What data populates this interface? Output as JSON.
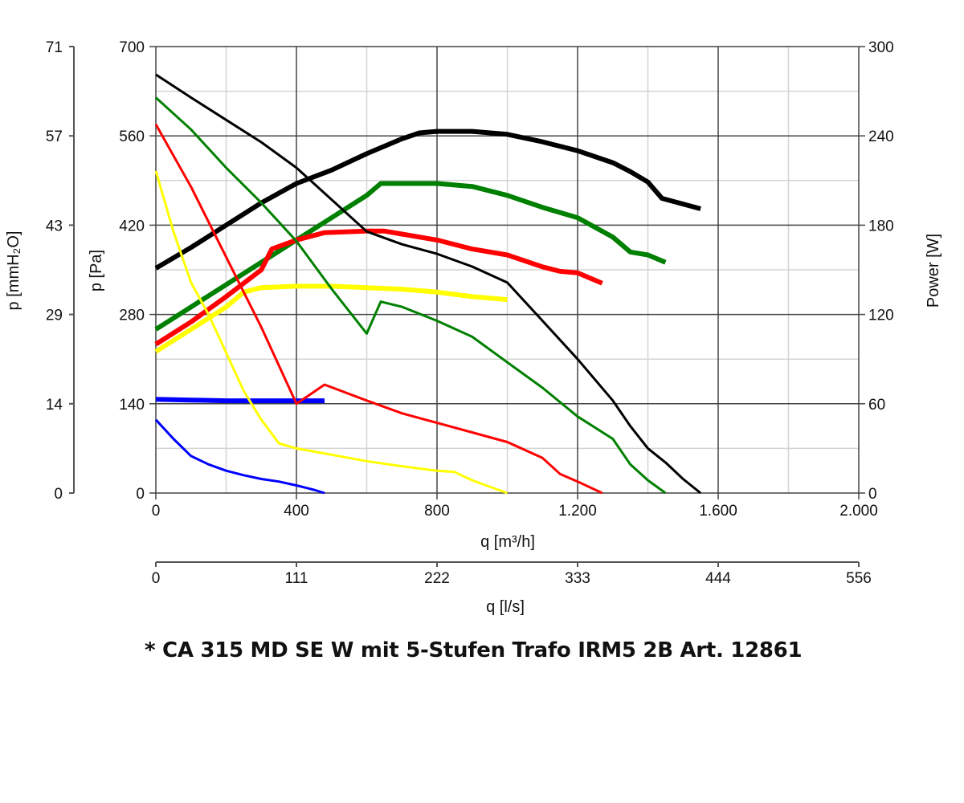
{
  "chart_data": {
    "type": "line",
    "title": "",
    "x_axis": {
      "label": "q [m³/h]",
      "range": [
        0,
        2000
      ],
      "ticks": [
        0,
        400,
        800,
        1200,
        1600,
        2000
      ],
      "tick_labels": [
        "0",
        "400",
        "800",
        "1.200",
        "1.600",
        "2.000"
      ],
      "minor_ticks": [
        200,
        600,
        1000,
        1400,
        1800
      ]
    },
    "x_axis_secondary": {
      "label": "q [l/s]",
      "tick_labels": [
        "0",
        "111",
        "222",
        "333",
        "444",
        "556"
      ]
    },
    "y_axis": {
      "label": "p [Pa]",
      "range": [
        0,
        700
      ],
      "ticks": [
        0,
        140,
        280,
        420,
        560,
        700
      ],
      "tick_labels": [
        "0",
        "140",
        "280",
        "420",
        "560",
        "700"
      ],
      "minor_ticks": [
        70,
        210,
        350,
        490,
        630
      ]
    },
    "y_axis_secondary_left": {
      "label": "p [mmH₂O]",
      "tick_labels": [
        "0",
        "14",
        "29",
        "43",
        "57",
        "71"
      ]
    },
    "y_axis_right": {
      "label": "Power [W]",
      "range": [
        0,
        300
      ],
      "tick_labels": [
        "0",
        "60",
        "120",
        "180",
        "240",
        "300"
      ]
    },
    "grid": true,
    "series": [
      {
        "name": "pressure-stage-black",
        "color": "#000000",
        "kind": "pressure",
        "axis": "left",
        "width": 3,
        "x": [
          0,
          100,
          200,
          300,
          400,
          500,
          600,
          700,
          800,
          900,
          1000,
          1100,
          1200,
          1300,
          1350,
          1400,
          1450,
          1500,
          1550
        ],
        "y": [
          656,
          620,
          585,
          550,
          510,
          460,
          410,
          390,
          375,
          355,
          330,
          270,
          210,
          145,
          105,
          70,
          48,
          22,
          0
        ]
      },
      {
        "name": "power-stage-black",
        "color": "#000000",
        "kind": "power",
        "axis": "right",
        "width": 6,
        "x": [
          0,
          100,
          200,
          300,
          400,
          500,
          600,
          700,
          750,
          800,
          900,
          1000,
          1100,
          1200,
          1300,
          1350,
          1400,
          1440,
          1550
        ],
        "y": [
          151,
          165,
          180,
          195,
          208,
          217,
          228,
          238,
          242,
          243,
          243,
          241,
          236,
          230,
          222,
          216,
          209,
          198,
          191
        ]
      },
      {
        "name": "pressure-stage-green",
        "color": "#008000",
        "kind": "pressure",
        "axis": "left",
        "width": 3,
        "x": [
          0,
          100,
          200,
          300,
          400,
          500,
          600,
          640,
          700,
          800,
          900,
          1000,
          1100,
          1200,
          1300,
          1350,
          1400,
          1450
        ],
        "y": [
          620,
          570,
          510,
          455,
          395,
          320,
          250,
          300,
          292,
          270,
          245,
          205,
          165,
          120,
          85,
          45,
          20,
          0
        ]
      },
      {
        "name": "power-stage-green",
        "color": "#008000",
        "kind": "power",
        "axis": "right",
        "width": 6,
        "x": [
          0,
          100,
          200,
          300,
          400,
          500,
          600,
          640,
          700,
          800,
          900,
          1000,
          1100,
          1200,
          1300,
          1350,
          1400,
          1450
        ],
        "y": [
          110,
          125,
          140,
          155,
          170,
          185,
          200,
          208,
          208,
          208,
          206,
          200,
          192,
          185,
          172,
          162,
          160,
          155
        ]
      },
      {
        "name": "pressure-stage-red",
        "color": "#ff0000",
        "kind": "pressure",
        "axis": "left",
        "width": 3,
        "x": [
          0,
          100,
          200,
          300,
          400,
          480,
          600,
          700,
          800,
          900,
          1000,
          1100,
          1150,
          1200,
          1270
        ],
        "y": [
          578,
          480,
          370,
          260,
          140,
          170,
          145,
          125,
          110,
          95,
          80,
          55,
          30,
          18,
          0
        ]
      },
      {
        "name": "power-stage-red",
        "color": "#ff0000",
        "kind": "power",
        "axis": "right",
        "width": 6,
        "x": [
          0,
          100,
          200,
          300,
          330,
          400,
          480,
          600,
          650,
          700,
          800,
          900,
          1000,
          1100,
          1150,
          1200,
          1270
        ],
        "y": [
          100,
          115,
          132,
          150,
          164,
          170,
          175,
          176,
          176,
          174,
          170,
          164,
          160,
          152,
          149,
          148,
          141
        ]
      },
      {
        "name": "pressure-stage-yellow",
        "color": "#ffff00",
        "kind": "pressure",
        "axis": "left",
        "width": 3,
        "x": [
          0,
          50,
          100,
          150,
          200,
          250,
          300,
          350,
          400,
          500,
          600,
          700,
          800,
          850,
          900,
          950,
          1000
        ],
        "y": [
          505,
          410,
          330,
          280,
          220,
          160,
          115,
          78,
          70,
          60,
          50,
          42,
          35,
          33,
          20,
          10,
          0
        ]
      },
      {
        "name": "power-stage-yellow",
        "color": "#ffff00",
        "kind": "power",
        "axis": "right",
        "width": 6,
        "x": [
          0,
          100,
          200,
          250,
          300,
          400,
          500,
          600,
          700,
          800,
          900,
          1000
        ],
        "y": [
          95,
          110,
          125,
          135,
          138,
          139,
          139,
          138,
          137,
          135,
          132,
          130
        ]
      },
      {
        "name": "pressure-stage-blue",
        "color": "#0000ff",
        "kind": "pressure",
        "axis": "left",
        "width": 3,
        "x": [
          0,
          50,
          100,
          150,
          200,
          250,
          300,
          350,
          400,
          450,
          480
        ],
        "y": [
          115,
          85,
          58,
          45,
          35,
          28,
          22,
          18,
          12,
          5,
          0
        ]
      },
      {
        "name": "power-stage-blue",
        "color": "#0000ff",
        "kind": "power",
        "axis": "right",
        "width": 6,
        "x": [
          0,
          100,
          200,
          300,
          400,
          480
        ],
        "y": [
          63,
          62.5,
          62,
          62,
          62,
          62
        ]
      }
    ]
  },
  "footnote": "* CA 315 MD SE W mit 5-Stufen Trafo IRM5 2B Art. 12861"
}
